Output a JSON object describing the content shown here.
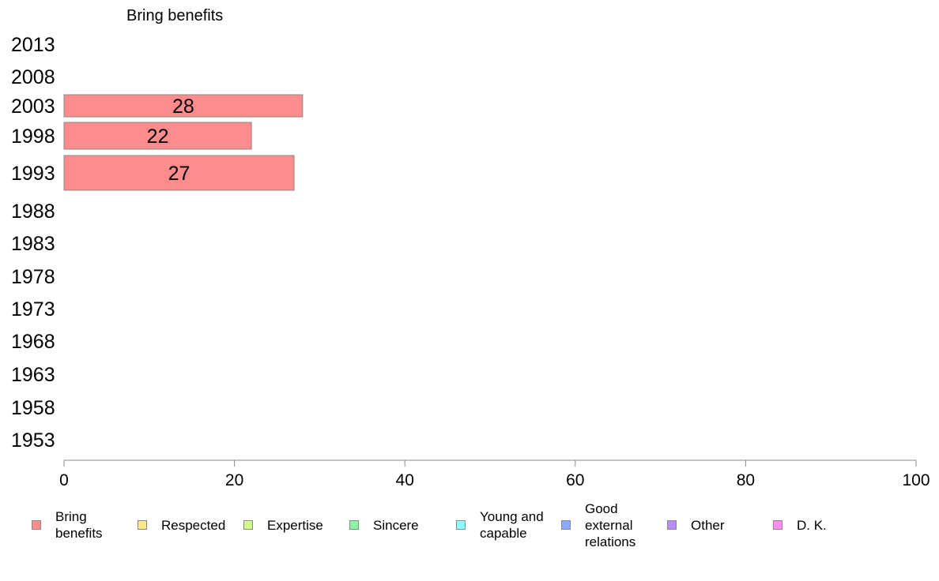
{
  "chart_data": {
    "type": "bar",
    "orientation": "horizontal",
    "title": "Bring benefits",
    "categories": [
      "2013",
      "2008",
      "2003",
      "1998",
      "1993",
      "1988",
      "1983",
      "1978",
      "1973",
      "1968",
      "1963",
      "1958",
      "1953"
    ],
    "series": [
      {
        "name": "Bring benefits",
        "color": "#ff8c8c",
        "values": [
          null,
          null,
          28,
          22,
          27,
          null,
          null,
          null,
          null,
          null,
          null,
          null,
          null
        ]
      }
    ],
    "data_labels": [
      "",
      "",
      "28",
      "22",
      "27",
      "",
      "",
      "",
      "",
      "",
      "",
      "",
      ""
    ],
    "xlim": [
      0,
      100
    ],
    "xticks": [
      "0",
      "20",
      "40",
      "60",
      "80",
      "100"
    ],
    "grid": false,
    "legend_position": "bottom",
    "legend": [
      {
        "label": "Bring\nbenefits",
        "color": "#ff8c8c"
      },
      {
        "label": "Respected",
        "color": "#ffe88c"
      },
      {
        "label": "Expertise",
        "color": "#d2ff8c"
      },
      {
        "label": "Sincere",
        "color": "#8cf5a0"
      },
      {
        "label": "Young and\ncapable",
        "color": "#8cffff"
      },
      {
        "label": "Good\nexternal\nrelations",
        "color": "#8caaff"
      },
      {
        "label": "Other",
        "color": "#b98cff"
      },
      {
        "label": "D. K.",
        "color": "#ff8cf0"
      }
    ]
  }
}
